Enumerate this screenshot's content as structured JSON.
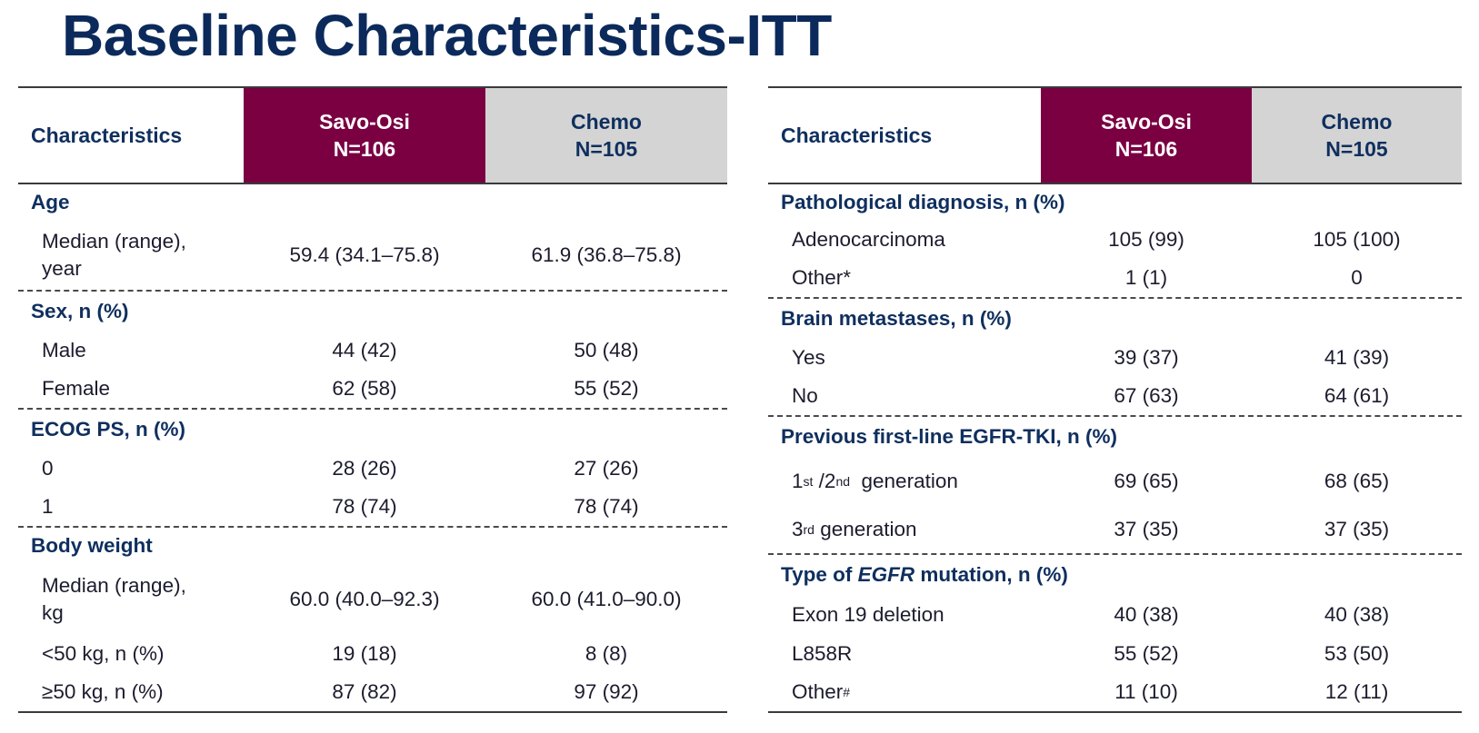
{
  "title": "Baseline Characteristics-ITT",
  "header": {
    "characteristics": "Characteristics",
    "arm1_name": "Savo-Osi",
    "arm1_n": "N=106",
    "arm2_name": "Chemo",
    "arm2_n": "N=105"
  },
  "colors": {
    "title": "#0b2a5b",
    "arm1_bg": "#7a0042",
    "arm2_bg": "#d4d4d4"
  },
  "left": {
    "age": {
      "heading": "Age",
      "median_label_1": "Median (range),",
      "median_label_2": "year",
      "median_v1": "59.4 (34.1–75.8)",
      "median_v2": "61.9 (36.8–75.8)"
    },
    "sex": {
      "heading": "Sex, n (%)",
      "male_label": "Male",
      "male_v1": "44 (42)",
      "male_v2": "50 (48)",
      "female_label": "Female",
      "female_v1": "62 (58)",
      "female_v2": "55 (52)"
    },
    "ecog": {
      "heading": "ECOG PS, n (%)",
      "r0_label": "0",
      "r0_v1": "28 (26)",
      "r0_v2": "27 (26)",
      "r1_label": "1",
      "r1_v1": "78 (74)",
      "r1_v2": "78 (74)"
    },
    "weight": {
      "heading": "Body weight",
      "median_label_1": "Median (range),",
      "median_label_2": "kg",
      "median_v1": "60.0 (40.0–92.3)",
      "median_v2": "60.0 (41.0–90.0)",
      "lt50_label": "<50 kg, n (%)",
      "lt50_v1": "19 (18)",
      "lt50_v2": "8 (8)",
      "ge50_label": "≥50 kg, n (%)",
      "ge50_v1": "87 (82)",
      "ge50_v2": "97 (92)"
    }
  },
  "right": {
    "pathology": {
      "heading": "Pathological diagnosis, n (%)",
      "adeno_label": "Adenocarcinoma",
      "adeno_v1": "105 (99)",
      "adeno_v2": "105 (100)",
      "other_label": "Other*",
      "other_v1": "1 (1)",
      "other_v2": "0"
    },
    "brain": {
      "heading": "Brain metastases, n (%)",
      "yes_label": "Yes",
      "yes_v1": "39 (37)",
      "yes_v2": "41 (39)",
      "no_label": "No",
      "no_v1": "67 (63)",
      "no_v2": "64 (61)"
    },
    "tki": {
      "heading": "Previous first-line EGFR-TKI, n (%)",
      "gen12_a": "1",
      "gen12_sup1": "st",
      "gen12_b": " /2",
      "gen12_sup2": "nd",
      "gen12_c": "  generation",
      "gen12_v1": "69 (65)",
      "gen12_v2": "68 (65)",
      "gen3_a": "3",
      "gen3_sup": "rd",
      "gen3_b": " generation",
      "gen3_v1": "37 (35)",
      "gen3_v2": "37 (35)"
    },
    "mutation": {
      "heading_a": "Type of ",
      "heading_b": "EGFR",
      "heading_c": " mutation, n (%)",
      "ex19_label": "Exon 19 deletion",
      "ex19_v1": "40 (38)",
      "ex19_v2": "40 (38)",
      "l858r_label": "L858R",
      "l858r_v1": "55 (52)",
      "l858r_v2": "53 (50)",
      "other_label": "Other",
      "other_sup": "#",
      "other_v1": "11 (10)",
      "other_v2": "12 (11)"
    }
  }
}
